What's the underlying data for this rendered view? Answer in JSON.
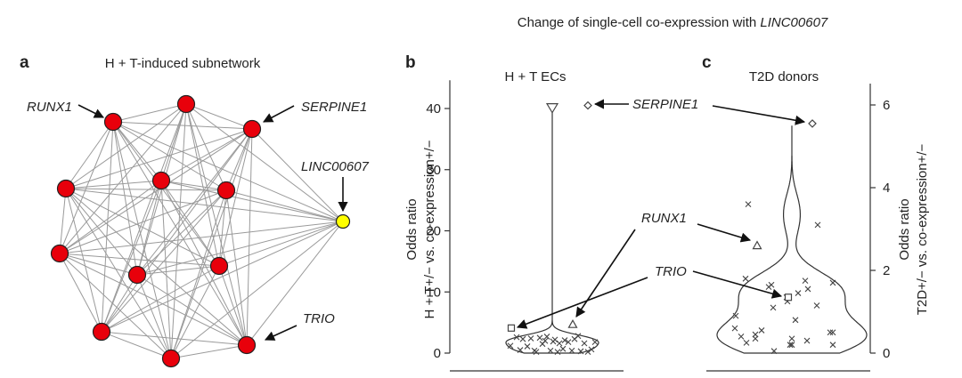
{
  "figure": {
    "super_title": "Change of single-cell co-expression with ",
    "super_title_gene": "LINC00607"
  },
  "chart_data": [
    {
      "type": "network",
      "panel": "a",
      "title": "H + T-induced subnetwork",
      "nodes": [
        {
          "id": "RUNX1",
          "label": "RUNX1",
          "color": "#e8000b"
        },
        {
          "id": "n_top",
          "label": "",
          "color": "#e8000b"
        },
        {
          "id": "SERPINE1",
          "label": "SERPINE1",
          "color": "#e8000b"
        },
        {
          "id": "n_left",
          "label": "",
          "color": "#e8000b"
        },
        {
          "id": "n_center",
          "label": "",
          "color": "#e8000b"
        },
        {
          "id": "n_cright",
          "label": "",
          "color": "#e8000b"
        },
        {
          "id": "LINC00607",
          "label": "LINC00607",
          "color": "#ffff00"
        },
        {
          "id": "n_lleft",
          "label": "",
          "color": "#e8000b"
        },
        {
          "id": "n_mid",
          "label": "",
          "color": "#e8000b"
        },
        {
          "id": "n_mright",
          "label": "",
          "color": "#e8000b"
        },
        {
          "id": "n_bleft",
          "label": "",
          "color": "#e8000b"
        },
        {
          "id": "n_bottom",
          "label": "",
          "color": "#e8000b"
        },
        {
          "id": "TRIO",
          "label": "TRIO",
          "color": "#e8000b"
        }
      ],
      "edges": "fully connected (all node pairs)"
    },
    {
      "type": "violin",
      "panel": "b",
      "title": "H + T ECs",
      "ylabel_line1": "Odds ratio",
      "ylabel_line2": "H + T+/− vs. co-expression+/−",
      "ylim": [
        0,
        42
      ],
      "yticks": [
        0,
        10,
        20,
        30,
        40
      ],
      "violin_max": 40.3,
      "points": [
        1.2,
        2.6,
        0.5,
        2.3,
        1.1,
        2.4,
        0.4,
        0.2,
        2.5,
        1.5,
        2.0,
        2.7,
        0.4,
        1.9,
        2.2,
        0.2,
        1.6,
        0.7,
        2.1,
        1.8,
        0.4,
        2.3,
        2.8,
        0.3,
        1.6,
        0.2,
        0.6,
        1.8
      ],
      "highlighted": [
        {
          "gene": "SERPINE1",
          "marker": "diamond",
          "value": 40.5
        },
        {
          "gene": "RUNX1",
          "marker": "triangle-up",
          "value": 4.7
        },
        {
          "gene": "TRIO",
          "marker": "square",
          "value": 4.1
        },
        {
          "gene": "LINC00607",
          "marker": "triangle-down",
          "value": 40.2
        }
      ]
    },
    {
      "type": "violin",
      "panel": "c",
      "title": "T2D donors",
      "ylabel_line1": "Odds ratio",
      "ylabel_line2": "T2D+/− vs. co-expression+/−",
      "ylim": [
        0,
        6.3
      ],
      "yticks": [
        0,
        2,
        4,
        6
      ],
      "y_axis_position": "right",
      "violin_max": 5.5,
      "points": [
        3.6,
        3.1,
        1.8,
        1.65,
        1.55,
        0.9,
        1.75,
        1.1,
        1.25,
        1.45,
        1.7,
        1.6,
        1.35,
        1.15,
        0.6,
        0.55,
        0.8,
        0.45,
        0.5,
        0.5,
        0.35,
        0.2,
        0.2,
        0.35,
        0.25,
        0.05,
        0.2,
        0.3,
        0.4
      ],
      "highlighted": [
        {
          "gene": "SERPINE1",
          "marker": "diamond",
          "value": 5.55
        },
        {
          "gene": "RUNX1",
          "marker": "triangle-up",
          "value": 2.6
        },
        {
          "gene": "TRIO",
          "marker": "square",
          "value": 1.35
        }
      ]
    }
  ]
}
